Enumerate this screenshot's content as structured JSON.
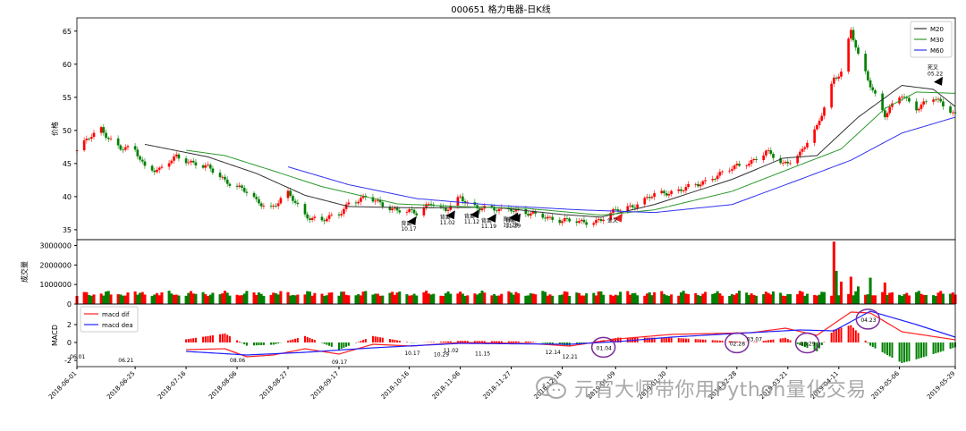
{
  "chart_data": [
    {
      "panel": "price",
      "type": "candlestick",
      "title": "000651 格力电器-日K线",
      "ylabel": "价格",
      "ylim": [
        33.5,
        67
      ],
      "yticks": [
        35,
        40,
        45,
        50,
        55,
        60,
        65
      ],
      "grid": false,
      "legend_position": "top-right",
      "date_range": [
        "2018-06-01",
        "2019-05-29"
      ],
      "up_color": "#ff0000",
      "down_color": "#008000",
      "close_points": [
        [
          "2018-06-01",
          47.0
        ],
        [
          "2018-06-06",
          48.8
        ],
        [
          "2018-06-11",
          50.2
        ],
        [
          "2018-06-14",
          49.0
        ],
        [
          "2018-06-19",
          47.3
        ],
        [
          "2018-06-25",
          46.9
        ],
        [
          "2018-06-29",
          44.6
        ],
        [
          "2018-07-05",
          44.0
        ],
        [
          "2018-07-12",
          46.0
        ],
        [
          "2018-07-18",
          45.3
        ],
        [
          "2018-07-25",
          44.3
        ],
        [
          "2018-08-01",
          42.5
        ],
        [
          "2018-08-08",
          41.2
        ],
        [
          "2018-08-14",
          39.2
        ],
        [
          "2018-08-20",
          38.4
        ],
        [
          "2018-08-27",
          40.4
        ],
        [
          "2018-09-03",
          37.2
        ],
        [
          "2018-09-10",
          36.4
        ],
        [
          "2018-09-17",
          37.2
        ],
        [
          "2018-09-21",
          39.2
        ],
        [
          "2018-09-28",
          39.8
        ],
        [
          "2018-10-11",
          38.0
        ],
        [
          "2018-10-19",
          37.4
        ],
        [
          "2018-10-25",
          39.3
        ],
        [
          "2018-10-31",
          37.8
        ],
        [
          "2018-11-06",
          39.8
        ],
        [
          "2018-11-13",
          38.4
        ],
        [
          "2018-11-20",
          37.9
        ],
        [
          "2018-11-27",
          38.3
        ],
        [
          "2018-12-04",
          37.3
        ],
        [
          "2018-12-11",
          37.0
        ],
        [
          "2018-12-18",
          36.4
        ],
        [
          "2018-12-25",
          36.1
        ],
        [
          "2019-01-03",
          36.5
        ],
        [
          "2019-01-10",
          38.0
        ],
        [
          "2019-01-17",
          38.8
        ],
        [
          "2019-01-25",
          40.2
        ],
        [
          "2019-02-12",
          41.7
        ],
        [
          "2019-02-19",
          43.2
        ],
        [
          "2019-02-26",
          44.2
        ],
        [
          "2019-03-05",
          45.2
        ],
        [
          "2019-03-12",
          46.8
        ],
        [
          "2019-03-19",
          44.8
        ],
        [
          "2019-03-26",
          46.6
        ],
        [
          "2019-04-02",
          50.3
        ],
        [
          "2019-04-09",
          58.0
        ],
        [
          "2019-04-12",
          58.8
        ],
        [
          "2019-04-16",
          65.0
        ],
        [
          "2019-04-19",
          61.2
        ],
        [
          "2019-04-24",
          57.0
        ],
        [
          "2019-04-30",
          52.3
        ],
        [
          "2019-05-07",
          55.3
        ],
        [
          "2019-05-13",
          53.5
        ],
        [
          "2019-05-20",
          54.8
        ],
        [
          "2019-05-29",
          52.6
        ]
      ],
      "legend": [
        {
          "name": "M20",
          "color": "#333333"
        },
        {
          "name": "M30",
          "color": "#2e9a2e"
        },
        {
          "name": "M60",
          "color": "#3333ee"
        }
      ],
      "ma_lines": [
        {
          "name": "M20",
          "color": "#333333",
          "points": [
            [
              "2018-06-29",
              47.9
            ],
            [
              "2018-07-25",
              46.0
            ],
            [
              "2018-08-14",
              43.5
            ],
            [
              "2018-09-03",
              40.2
            ],
            [
              "2018-09-21",
              38.5
            ],
            [
              "2018-10-19",
              38.3
            ],
            [
              "2018-11-20",
              38.4
            ],
            [
              "2018-12-18",
              37.3
            ],
            [
              "2019-01-03",
              36.9
            ],
            [
              "2019-01-25",
              38.8
            ],
            [
              "2019-02-26",
              42.6
            ],
            [
              "2019-03-19",
              45.8
            ],
            [
              "2019-04-02",
              46.2
            ],
            [
              "2019-04-19",
              52.0
            ],
            [
              "2019-05-07",
              56.8
            ],
            [
              "2019-05-20",
              56.2
            ],
            [
              "2019-05-29",
              53.6
            ]
          ]
        },
        {
          "name": "M30",
          "color": "#2e9a2e",
          "points": [
            [
              "2018-07-16",
              47.0
            ],
            [
              "2018-08-01",
              46.2
            ],
            [
              "2018-08-20",
              44.0
            ],
            [
              "2018-09-10",
              41.5
            ],
            [
              "2018-10-11",
              38.9
            ],
            [
              "2018-11-06",
              38.5
            ],
            [
              "2018-12-04",
              38.2
            ],
            [
              "2019-01-03",
              37.2
            ],
            [
              "2019-01-25",
              38.0
            ],
            [
              "2019-02-26",
              40.8
            ],
            [
              "2019-03-26",
              44.8
            ],
            [
              "2019-04-12",
              47.2
            ],
            [
              "2019-04-30",
              53.3
            ],
            [
              "2019-05-13",
              55.8
            ],
            [
              "2019-05-29",
              55.6
            ]
          ]
        },
        {
          "name": "M60",
          "color": "#3333ee",
          "points": [
            [
              "2018-08-27",
              44.5
            ],
            [
              "2018-09-21",
              41.8
            ],
            [
              "2018-10-19",
              39.7
            ],
            [
              "2018-11-20",
              38.7
            ],
            [
              "2018-12-25",
              38.0
            ],
            [
              "2019-01-25",
              37.6
            ],
            [
              "2019-02-26",
              38.8
            ],
            [
              "2019-03-26",
              42.6
            ],
            [
              "2019-04-16",
              45.5
            ],
            [
              "2019-05-07",
              49.6
            ],
            [
              "2019-05-29",
              52.0
            ]
          ]
        }
      ],
      "annotations": [
        {
          "label": "背离",
          "date_text": "10.17",
          "date": "2018-10-17"
        },
        {
          "label": "背离",
          "date_text": "11.02",
          "date": "2018-11-02"
        },
        {
          "label": "背离",
          "date_text": "11.12",
          "date": "2018-11-12"
        },
        {
          "label": "背离",
          "date_text": "11.19",
          "date": "2018-11-19"
        },
        {
          "label": "背离",
          "date_text": "11.28",
          "date": "2018-11-28"
        },
        {
          "label": "背离",
          "date_text": "11.29",
          "date": "2018-11-29"
        },
        {
          "label": "金叉",
          "date_text": "",
          "date": "2019-01-10"
        },
        {
          "label": "死叉",
          "date_text": "05.22",
          "date": "2019-05-22"
        }
      ]
    },
    {
      "panel": "volume",
      "type": "bar",
      "ylabel": "成交量",
      "ylim": [
        0,
        3300000
      ],
      "yticks": [
        0,
        1000000,
        2000000,
        3000000
      ],
      "ytick_labels": [
        "0",
        "1000000",
        "2000000",
        "3000000"
      ],
      "bars": [
        [
          "2019-04-09",
          3200000,
          "up"
        ],
        [
          "2019-04-10",
          1700000,
          "down"
        ],
        [
          "2019-04-12",
          1150000,
          "up"
        ],
        [
          "2019-04-16",
          1400000,
          "up"
        ],
        [
          "2019-04-19",
          900000,
          "down"
        ],
        [
          "2019-04-24",
          1350000,
          "down"
        ],
        [
          "2019-04-30",
          1100000,
          "up"
        ]
      ],
      "baseline_volume": 550000
    },
    {
      "panel": "macd",
      "type": "line",
      "ylabel": "MACD",
      "ylim": [
        -2.7,
        4.3
      ],
      "yticks": [
        -2,
        0,
        2
      ],
      "legend_position": "top-left",
      "legend": [
        {
          "name": "macd dif",
          "color": "#ff2020"
        },
        {
          "name": "macd dea",
          "color": "#2020ff"
        }
      ],
      "series": [
        {
          "name": "macd dif",
          "color": "#ff2020",
          "points": [
            [
              "2018-07-16",
              -0.8
            ],
            [
              "2018-08-01",
              -0.7
            ],
            [
              "2018-08-10",
              -1.6
            ],
            [
              "2018-08-21",
              -1.4
            ],
            [
              "2018-09-03",
              -0.7
            ],
            [
              "2018-09-17",
              -1.3
            ],
            [
              "2018-10-01",
              -0.2
            ],
            [
              "2018-10-17",
              -0.4
            ],
            [
              "2018-11-06",
              0.0
            ],
            [
              "2018-12-04",
              -0.1
            ],
            [
              "2018-12-21",
              -0.4
            ],
            [
              "2019-01-10",
              0.4
            ],
            [
              "2019-02-01",
              0.9
            ],
            [
              "2019-03-06",
              1.1
            ],
            [
              "2019-03-20",
              1.6
            ],
            [
              "2019-04-02",
              0.8
            ],
            [
              "2019-04-16",
              3.4
            ],
            [
              "2019-04-24",
              3.3
            ],
            [
              "2019-05-07",
              1.2
            ],
            [
              "2019-05-29",
              0.3
            ]
          ]
        },
        {
          "name": "macd dea",
          "color": "#2020ff",
          "points": [
            [
              "2018-07-16",
              -1.0
            ],
            [
              "2018-08-10",
              -1.4
            ],
            [
              "2018-09-03",
              -1.1
            ],
            [
              "2018-10-01",
              -0.6
            ],
            [
              "2018-11-06",
              -0.1
            ],
            [
              "2018-12-21",
              -0.2
            ],
            [
              "2019-01-10",
              0.1
            ],
            [
              "2019-02-01",
              0.6
            ],
            [
              "2019-03-06",
              1.1
            ],
            [
              "2019-03-26",
              1.4
            ],
            [
              "2019-04-09",
              1.3
            ],
            [
              "2019-04-24",
              3.5
            ],
            [
              "2019-05-13",
              2.0
            ],
            [
              "2019-05-29",
              0.6
            ]
          ]
        }
      ],
      "histogram_color_up": "#ff0000",
      "histogram_color_down": "#008000",
      "date_labels": [
        "06.01",
        "06.21",
        "08.06",
        "09.17",
        "10.17",
        "10.29",
        "11.02",
        "11.15",
        "12.14",
        "12.21",
        "01.04",
        "02.28",
        "03.07",
        "03.29",
        "04.23"
      ],
      "circled_dates": [
        "01.04",
        "02.28",
        "03.29",
        "04.23"
      ]
    }
  ],
  "xaxis": {
    "tick_labels": [
      "2018-06-01",
      "2018-06-25",
      "2018-07-16",
      "2018-08-06",
      "2018-08-27",
      "2018-09-17",
      "2018-10-16",
      "2018-11-06",
      "2018-11-27",
      "2018-12-18",
      "2019-01-09",
      "2019-01-30",
      "2019-02-28",
      "2019-03-21",
      "2019-04-11",
      "2019-05-06",
      "2019-05-29"
    ]
  },
  "watermark": {
    "text": "元宵大师带你用Python量化交易",
    "icon": "wechat-icon"
  }
}
